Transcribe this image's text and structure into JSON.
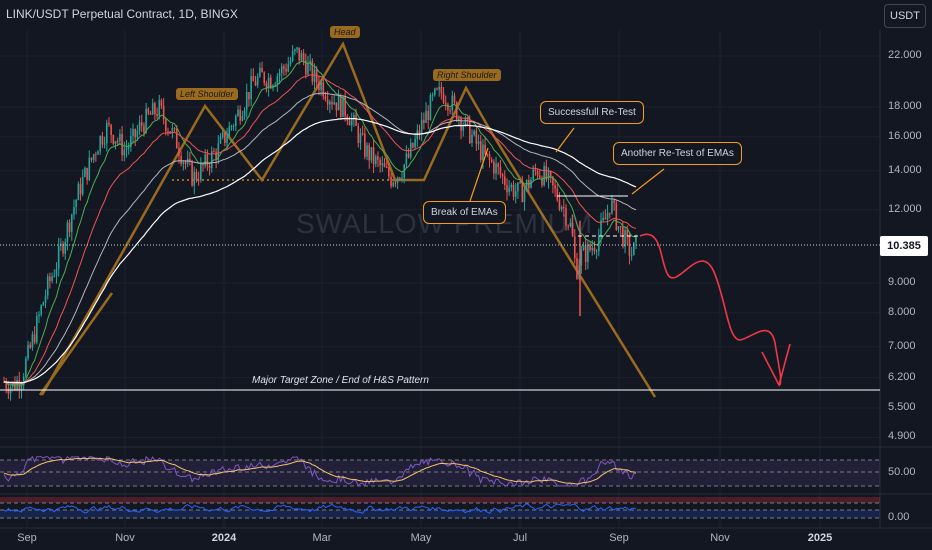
{
  "header": {
    "title": "LINK/USDT Perpetual Contract, 1D, BINGX",
    "currency": "USDT"
  },
  "watermark": "SWALLOW PREMIUM",
  "current_price": "10.385",
  "annotations": {
    "retest": "Successfull Re-Test",
    "retest2": "Another Re-Test of EMAs",
    "break": "Break of EMAs",
    "target_zone": "Major Target Zone / End of H&S Pattern"
  },
  "pattern_labels": {
    "left_shoulder": "Left Shoulder",
    "head": "Head",
    "right_shoulder": "Right Shoulder"
  },
  "colors": {
    "background": "#131722",
    "bull": "#26a69a",
    "bear": "#ef5350",
    "pattern": "#9a6a1e",
    "annotation": "#f59c1a",
    "projection": "#f23645",
    "rsi": "#7e57c2",
    "wave_lower": "#2962ff"
  },
  "chart_data": {
    "type": "candlestick",
    "title": "LINK/USDT Perpetual Contract, 1D, BINGX",
    "y_scale": "log",
    "y_ticks": [
      "22.000",
      "18.000",
      "16.000",
      "14.000",
      "12.000",
      "10.385",
      "9.000",
      "8.000",
      "7.000",
      "6.200",
      "5.500",
      "4.900"
    ],
    "y_tick_values": [
      22,
      18,
      16,
      14,
      12,
      10.385,
      9,
      8,
      7,
      6.2,
      5.5,
      4.9
    ],
    "x_ticks": [
      "Sep",
      "Nov",
      "2024",
      "Mar",
      "May",
      "Jul",
      "Sep",
      "Nov",
      "2025"
    ],
    "x_tick_bold": [
      false,
      false,
      true,
      false,
      false,
      false,
      false,
      false,
      true
    ],
    "close_path": [
      [
        0,
        6.1
      ],
      [
        2,
        6.0
      ],
      [
        4,
        6.2
      ],
      [
        6,
        6.9
      ],
      [
        8,
        7.8
      ],
      [
        10,
        8.8
      ],
      [
        12,
        9.6
      ],
      [
        14,
        10.7
      ],
      [
        16,
        12.0
      ],
      [
        18,
        13.3
      ],
      [
        20,
        14.4
      ],
      [
        22,
        15.7
      ],
      [
        24,
        16.6
      ],
      [
        26,
        16.0
      ],
      [
        28,
        15.2
      ],
      [
        30,
        15.8
      ],
      [
        32,
        16.8
      ],
      [
        34,
        17.4
      ],
      [
        36,
        17.9
      ],
      [
        38,
        16.8
      ],
      [
        40,
        15.8
      ],
      [
        42,
        14.5
      ],
      [
        44,
        13.6
      ],
      [
        46,
        14.1
      ],
      [
        48,
        14.7
      ],
      [
        50,
        15.3
      ],
      [
        52,
        16.3
      ],
      [
        54,
        17.3
      ],
      [
        56,
        18.5
      ],
      [
        58,
        19.8
      ],
      [
        60,
        20.3
      ],
      [
        62,
        20.1
      ],
      [
        64,
        20.6
      ],
      [
        66,
        21.3
      ],
      [
        68,
        22.3
      ],
      [
        70,
        21.5
      ],
      [
        72,
        20.2
      ],
      [
        74,
        19.6
      ],
      [
        76,
        18.7
      ],
      [
        78,
        18.2
      ],
      [
        80,
        17.6
      ],
      [
        82,
        16.4
      ],
      [
        84,
        15.2
      ],
      [
        86,
        14.6
      ],
      [
        88,
        14.1
      ],
      [
        90,
        13.6
      ],
      [
        92,
        13.9
      ],
      [
        94,
        14.7
      ],
      [
        96,
        15.9
      ],
      [
        98,
        17.3
      ],
      [
        100,
        18.6
      ],
      [
        102,
        19.1
      ],
      [
        104,
        18.3
      ],
      [
        106,
        17.3
      ],
      [
        108,
        16.4
      ],
      [
        110,
        15.5
      ],
      [
        112,
        14.7
      ],
      [
        114,
        14.3
      ],
      [
        116,
        13.6
      ],
      [
        118,
        13.1
      ],
      [
        120,
        12.8
      ],
      [
        122,
        13.3
      ],
      [
        124,
        14.1
      ],
      [
        126,
        13.6
      ],
      [
        128,
        12.9
      ],
      [
        130,
        12.2
      ],
      [
        132,
        11.1
      ],
      [
        133,
        9.4
      ],
      [
        134,
        10.0
      ],
      [
        136,
        10.2
      ],
      [
        138,
        10.7
      ],
      [
        140,
        11.6
      ],
      [
        141,
        12.4
      ],
      [
        143,
        11.2
      ],
      [
        145,
        10.4
      ],
      [
        146,
        10.1
      ],
      [
        147,
        10.385
      ]
    ],
    "x_index_range": [
      0,
      147
    ],
    "rsi_levels": [
      70,
      50,
      30
    ],
    "rsi_ticks": [
      "50.00"
    ],
    "lower_ticks": [
      "0.00"
    ]
  }
}
